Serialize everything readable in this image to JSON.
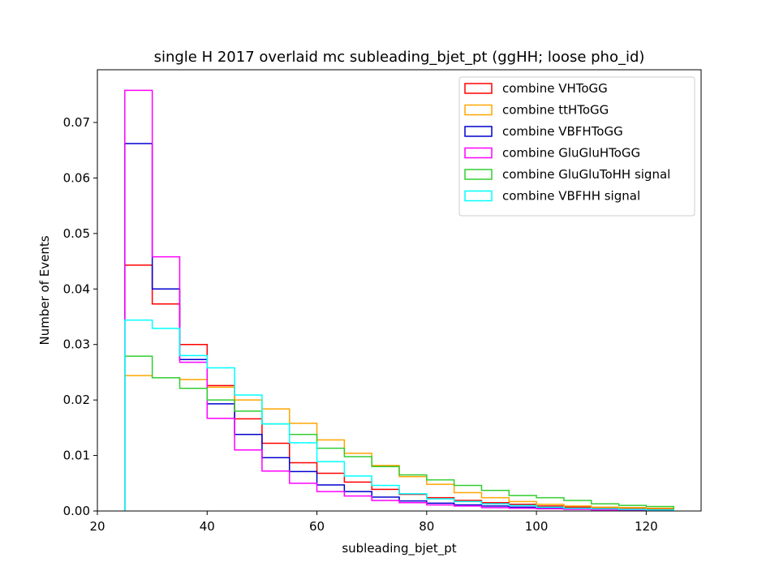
{
  "chart_data": {
    "type": "histogram-step",
    "title": "single H 2017 overlaid mc subleading_bjet_pt (ggHH; loose pho_id)",
    "xlabel": "subleading_bjet_pt",
    "ylabel": "Number of Events",
    "xlim": [
      20,
      130
    ],
    "ylim": [
      0,
      0.0795
    ],
    "x_ticks": [
      20,
      40,
      60,
      80,
      100,
      120
    ],
    "y_ticks": [
      0.0,
      0.01,
      0.02,
      0.03,
      0.04,
      0.05,
      0.06,
      0.07
    ],
    "y_tick_labels": [
      "0.00",
      "0.01",
      "0.02",
      "0.03",
      "0.04",
      "0.05",
      "0.06",
      "0.07"
    ],
    "grid": false,
    "legend_position": "top-right",
    "bin_edges": [
      25,
      30,
      35,
      40,
      45,
      50,
      55,
      60,
      65,
      70,
      75,
      80,
      85,
      90,
      95,
      100,
      105,
      110,
      115,
      120,
      125
    ],
    "series": [
      {
        "name": "combine VHToGG",
        "color": "#ff0000",
        "values": [
          0.0443,
          0.0373,
          0.03,
          0.0226,
          0.0166,
          0.0122,
          0.0087,
          0.0068,
          0.0052,
          0.0039,
          0.003,
          0.0024,
          0.0019,
          0.0015,
          0.0012,
          0.0009,
          0.0007,
          0.0006,
          0.0005,
          0.0004
        ]
      },
      {
        "name": "combine ttHToGG",
        "color": "#ffa500",
        "values": [
          0.0244,
          0.024,
          0.0237,
          0.0223,
          0.02,
          0.0184,
          0.0158,
          0.0128,
          0.0104,
          0.0082,
          0.0062,
          0.0048,
          0.0033,
          0.0024,
          0.0017,
          0.0012,
          0.0009,
          0.0007,
          0.0006,
          0.0005
        ]
      },
      {
        "name": "combine VBFHToGG",
        "color": "#0000cd",
        "values": [
          0.0662,
          0.04,
          0.0273,
          0.0193,
          0.0138,
          0.0096,
          0.0071,
          0.0047,
          0.0035,
          0.0025,
          0.0018,
          0.0014,
          0.0011,
          0.0009,
          0.0007,
          0.0005,
          0.0004,
          0.0003,
          0.0002,
          0.0002
        ]
      },
      {
        "name": "combine GluGluHToGG",
        "color": "#ff00ff",
        "values": [
          0.0758,
          0.0458,
          0.0268,
          0.0167,
          0.011,
          0.0072,
          0.005,
          0.0035,
          0.0027,
          0.0019,
          0.0015,
          0.0011,
          0.0009,
          0.0006,
          0.0005,
          0.0004,
          0.0003,
          0.0002,
          0.0002,
          0.0001
        ]
      },
      {
        "name": "combine GluGluToHH signal",
        "color": "#32cd32",
        "values": [
          0.0279,
          0.024,
          0.0221,
          0.02,
          0.018,
          0.0157,
          0.0138,
          0.0113,
          0.0098,
          0.008,
          0.0065,
          0.0056,
          0.0046,
          0.0037,
          0.0028,
          0.0024,
          0.0019,
          0.0013,
          0.001,
          0.0008
        ]
      },
      {
        "name": "combine VBFHH signal",
        "color": "#00ffff",
        "values": [
          0.0344,
          0.0329,
          0.028,
          0.0258,
          0.0209,
          0.0157,
          0.0123,
          0.0089,
          0.0063,
          0.0046,
          0.0031,
          0.0022,
          0.0017,
          0.0013,
          0.001,
          0.0007,
          0.0005,
          0.0004,
          0.0003,
          0.0002
        ]
      }
    ]
  }
}
